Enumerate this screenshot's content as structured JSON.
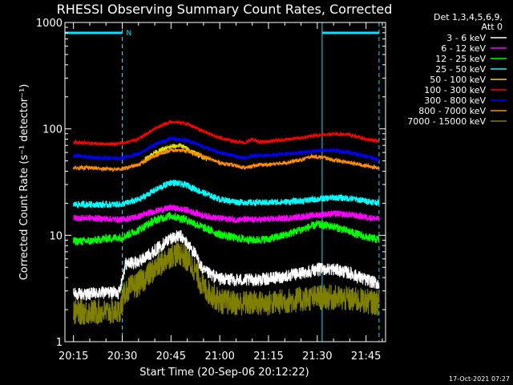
{
  "chart_data": {
    "type": "line",
    "title": "RHESSI Observing Summary Count Rates, Corrected",
    "xlabel": "Start Time (20-Sep-06 20:12:22)",
    "ylabel": "Corrected Count Rate (s⁻¹ detector⁻¹)",
    "yscale": "log",
    "ylim": [
      1,
      1000
    ],
    "xlim": [
      "20:12:22",
      "21:51:00"
    ],
    "x_ticks": [
      "20:15",
      "20:30",
      "20:45",
      "21:00",
      "21:15",
      "21:30",
      "21:45"
    ],
    "y_ticks": [
      "1",
      "10",
      "100",
      "1000"
    ],
    "legend_header": [
      "Det 1,3,4,5,6,9,",
      "Att 0"
    ],
    "legend_position": "top-right-outside",
    "footer_date": "17-Oct-2021 07:27",
    "night_marker": "N",
    "night_intervals": [
      [
        "20:12:22",
        "20:30:00"
      ],
      [
        "21:31:30",
        "21:49:00"
      ]
    ],
    "series": [
      {
        "name": "3 - 6 keV",
        "color": "#ffffff",
        "points": [
          [
            "20:15",
            2.8
          ],
          [
            "20:20",
            2.8
          ],
          [
            "20:25",
            2.9
          ],
          [
            "20:29",
            2.9
          ],
          [
            "20:31",
            5.4
          ],
          [
            "20:35",
            5.6
          ],
          [
            "20:40",
            7.2
          ],
          [
            "20:45",
            9.5
          ],
          [
            "20:48",
            9.8
          ],
          [
            "20:52",
            7.0
          ],
          [
            "20:55",
            4.6
          ],
          [
            "21:00",
            3.9
          ],
          [
            "21:05",
            3.8
          ],
          [
            "21:10",
            3.8
          ],
          [
            "21:15",
            3.9
          ],
          [
            "21:20",
            4.1
          ],
          [
            "21:25",
            4.4
          ],
          [
            "21:30",
            4.8
          ],
          [
            "21:35",
            4.8
          ],
          [
            "21:40",
            4.4
          ],
          [
            "21:45",
            3.8
          ],
          [
            "21:49",
            3.5
          ]
        ]
      },
      {
        "name": "6 - 12 keV",
        "color": "#ff00ff",
        "points": [
          [
            "20:15",
            14.5
          ],
          [
            "20:20",
            14.5
          ],
          [
            "20:25",
            14.3
          ],
          [
            "20:30",
            14.0
          ],
          [
            "20:35",
            15.0
          ],
          [
            "20:40",
            16.8
          ],
          [
            "20:45",
            18.2
          ],
          [
            "20:50",
            17.2
          ],
          [
            "20:55",
            15.3
          ],
          [
            "21:00",
            14.4
          ],
          [
            "21:05",
            14.0
          ],
          [
            "21:10",
            14.0
          ],
          [
            "21:15",
            14.1
          ],
          [
            "21:20",
            14.4
          ],
          [
            "21:25",
            14.9
          ],
          [
            "21:30",
            15.5
          ],
          [
            "21:35",
            16.0
          ],
          [
            "21:40",
            15.6
          ],
          [
            "21:45",
            14.8
          ],
          [
            "21:49",
            14.2
          ]
        ]
      },
      {
        "name": "12 - 25 keV",
        "color": "#00ff00",
        "points": [
          [
            "20:15",
            8.8
          ],
          [
            "20:20",
            8.8
          ],
          [
            "20:25",
            9.3
          ],
          [
            "20:30",
            9.6
          ],
          [
            "20:35",
            11.2
          ],
          [
            "20:40",
            13.8
          ],
          [
            "20:45",
            15.3
          ],
          [
            "20:50",
            13.9
          ],
          [
            "20:55",
            11.8
          ],
          [
            "21:00",
            10.2
          ],
          [
            "21:05",
            9.4
          ],
          [
            "21:10",
            9.0
          ],
          [
            "21:15",
            9.2
          ],
          [
            "21:20",
            10.0
          ],
          [
            "21:25",
            11.3
          ],
          [
            "21:30",
            12.6
          ],
          [
            "21:35",
            12.1
          ],
          [
            "21:40",
            10.8
          ],
          [
            "21:45",
            9.6
          ],
          [
            "21:49",
            9.1
          ]
        ]
      },
      {
        "name": "25 - 50 keV",
        "color": "#00ffff",
        "points": [
          [
            "20:15",
            19.5
          ],
          [
            "20:20",
            19.5
          ],
          [
            "20:25",
            19.4
          ],
          [
            "20:30",
            19.6
          ],
          [
            "20:35",
            21.5
          ],
          [
            "20:40",
            26.5
          ],
          [
            "20:45",
            31.5
          ],
          [
            "20:50",
            29.5
          ],
          [
            "20:55",
            25.0
          ],
          [
            "21:00",
            21.8
          ],
          [
            "21:05",
            20.6
          ],
          [
            "21:10",
            20.2
          ],
          [
            "21:15",
            20.3
          ],
          [
            "21:20",
            20.6
          ],
          [
            "21:25",
            21.0
          ],
          [
            "21:30",
            21.8
          ],
          [
            "21:35",
            22.6
          ],
          [
            "21:40",
            22.2
          ],
          [
            "21:45",
            21.0
          ],
          [
            "21:49",
            20.2
          ]
        ]
      },
      {
        "name": "50 - 100 keV",
        "color": "#e0e000",
        "points": [
          [
            "20:37",
            52.0
          ],
          [
            "20:40",
            60.0
          ],
          [
            "20:45",
            68.0
          ],
          [
            "20:48",
            70.0
          ],
          [
            "20:52",
            60.0
          ],
          [
            "20:56",
            52.0
          ]
        ]
      },
      {
        "name": "100 - 300 keV",
        "color": "#ff0000",
        "points": [
          [
            "20:15",
            75
          ],
          [
            "20:20",
            73
          ],
          [
            "20:25",
            72
          ],
          [
            "20:30",
            73
          ],
          [
            "20:35",
            80
          ],
          [
            "20:40",
            100
          ],
          [
            "20:45",
            117
          ],
          [
            "20:50",
            112
          ],
          [
            "20:55",
            95
          ],
          [
            "21:00",
            82
          ],
          [
            "21:05",
            76
          ],
          [
            "21:08",
            74
          ],
          [
            "21:10",
            80
          ],
          [
            "21:12",
            75
          ],
          [
            "21:15",
            76
          ],
          [
            "21:20",
            79
          ],
          [
            "21:25",
            82
          ],
          [
            "21:30",
            87
          ],
          [
            "21:35",
            90
          ],
          [
            "21:40",
            88
          ],
          [
            "21:45",
            80
          ],
          [
            "21:49",
            76
          ]
        ]
      },
      {
        "name": "300 - 800 keV",
        "color": "#0000ff",
        "points": [
          [
            "20:15",
            56
          ],
          [
            "20:20",
            54
          ],
          [
            "20:25",
            53
          ],
          [
            "20:30",
            53
          ],
          [
            "20:35",
            58
          ],
          [
            "20:40",
            71
          ],
          [
            "20:45",
            81
          ],
          [
            "20:50",
            78
          ],
          [
            "20:55",
            68
          ],
          [
            "21:00",
            60
          ],
          [
            "21:05",
            55
          ],
          [
            "21:08",
            53
          ],
          [
            "21:10",
            56
          ],
          [
            "21:15",
            56
          ],
          [
            "21:20",
            58
          ],
          [
            "21:25",
            60
          ],
          [
            "21:30",
            62
          ],
          [
            "21:35",
            63
          ],
          [
            "21:40",
            60
          ],
          [
            "21:45",
            55
          ],
          [
            "21:49",
            51
          ]
        ]
      },
      {
        "name": "800 - 7000 keV",
        "color": "#ff8c00",
        "points": [
          [
            "20:15",
            43
          ],
          [
            "20:20",
            43
          ],
          [
            "20:25",
            42
          ],
          [
            "20:30",
            42
          ],
          [
            "20:35",
            46
          ],
          [
            "20:40",
            56
          ],
          [
            "20:45",
            63
          ],
          [
            "20:50",
            62
          ],
          [
            "20:55",
            55
          ],
          [
            "21:00",
            48
          ],
          [
            "21:05",
            45
          ],
          [
            "21:08",
            43
          ],
          [
            "21:12",
            46
          ],
          [
            "21:15",
            46
          ],
          [
            "21:20",
            48
          ],
          [
            "21:25",
            51
          ],
          [
            "21:28",
            55
          ],
          [
            "21:32",
            54
          ],
          [
            "21:35",
            51
          ],
          [
            "21:40",
            48
          ],
          [
            "21:45",
            45
          ],
          [
            "21:49",
            43
          ]
        ]
      },
      {
        "name": "7000 - 15000 keV",
        "color": "#808000",
        "points": [
          [
            "20:15",
            1.9
          ],
          [
            "20:20",
            1.9
          ],
          [
            "20:25",
            1.9
          ],
          [
            "20:29",
            1.9
          ],
          [
            "20:31",
            3.0
          ],
          [
            "20:35",
            3.5
          ],
          [
            "20:40",
            4.8
          ],
          [
            "20:45",
            6.5
          ],
          [
            "20:48",
            6.8
          ],
          [
            "20:52",
            5.0
          ],
          [
            "20:55",
            3.2
          ],
          [
            "21:00",
            2.4
          ],
          [
            "21:05",
            2.3
          ],
          [
            "21:10",
            2.3
          ],
          [
            "21:15",
            2.3
          ],
          [
            "21:20",
            2.4
          ],
          [
            "21:25",
            2.5
          ],
          [
            "21:30",
            2.6
          ],
          [
            "21:35",
            2.6
          ],
          [
            "21:40",
            2.5
          ],
          [
            "21:45",
            2.4
          ],
          [
            "21:49",
            2.3
          ]
        ]
      }
    ]
  }
}
